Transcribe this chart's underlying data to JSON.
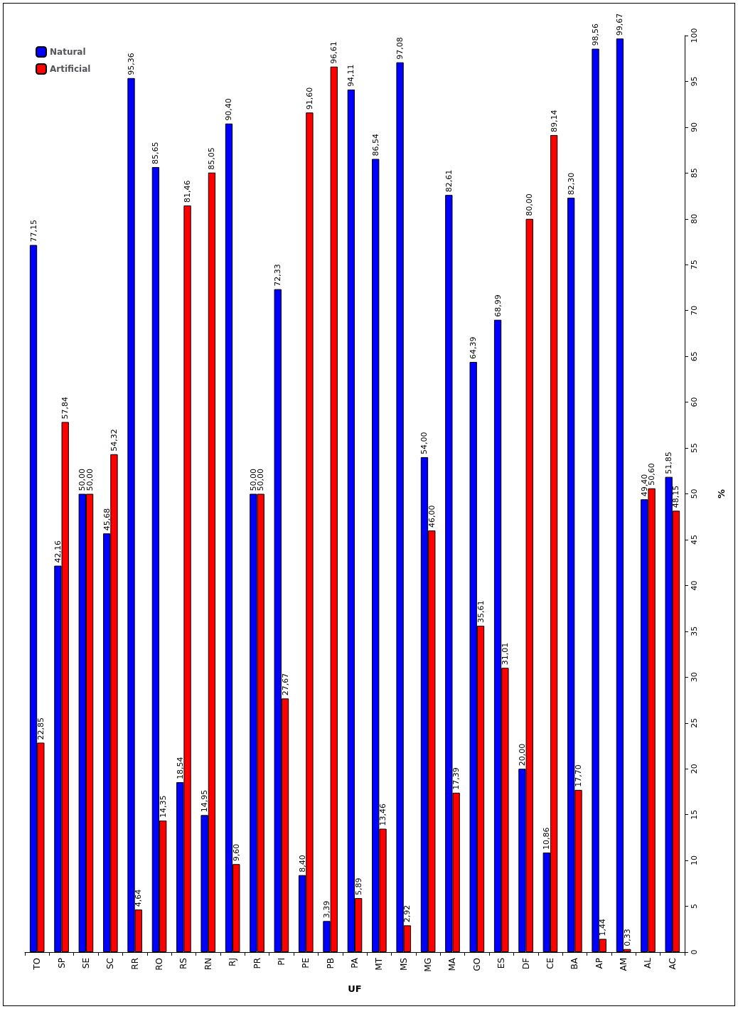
{
  "chart_data": {
    "type": "bar",
    "xlabel": "UF",
    "ylabel": "%",
    "categories": [
      "TO",
      "SP",
      "SE",
      "SC",
      "RR",
      "RO",
      "RS",
      "RN",
      "RJ",
      "PR",
      "PI",
      "PE",
      "PB",
      "PA",
      "MT",
      "MS",
      "MG",
      "MA",
      "GO",
      "ES",
      "DF",
      "CE",
      "BA",
      "AP",
      "AM",
      "AL",
      "AC"
    ],
    "series": [
      {
        "name": "Natural",
        "color": "#0000ff",
        "values": [
          77.15,
          42.16,
          50.0,
          45.68,
          95.36,
          85.65,
          18.54,
          14.95,
          90.4,
          50.0,
          72.33,
          8.4,
          3.39,
          94.11,
          86.54,
          97.08,
          54.0,
          82.61,
          64.39,
          68.99,
          20.0,
          10.86,
          82.3,
          98.56,
          99.67,
          49.4,
          51.85
        ],
        "value_labels": [
          "77,15",
          "42,16",
          "50,00",
          "45,68",
          "95,36",
          "85,65",
          "18,54",
          "14,95",
          "90,40",
          "50,00",
          "72,33",
          "8,40",
          "3,39",
          "94,11",
          "86,54",
          "97,08",
          "54,00",
          "82,61",
          "64,39",
          "68,99",
          "20,00",
          "10,86",
          "82,30",
          "98,56",
          "99,67",
          "49,40",
          "51,85"
        ]
      },
      {
        "name": "Artificial",
        "color": "#ff0000",
        "values": [
          22.85,
          57.84,
          50.0,
          54.32,
          4.64,
          14.35,
          81.46,
          85.05,
          9.6,
          50.0,
          27.67,
          91.6,
          96.61,
          5.89,
          13.46,
          2.92,
          46.0,
          17.39,
          35.61,
          31.01,
          80.0,
          89.14,
          17.7,
          1.44,
          0.33,
          50.6,
          48.15
        ],
        "value_labels": [
          "22,85",
          "57,84",
          "50,00",
          "54,32",
          "4,64",
          "14,35",
          "81,46",
          "85,05",
          "9,60",
          "50,00",
          "27,67",
          "91,60",
          "96,61",
          "5,89",
          "13,46",
          "2,92",
          "46,00",
          "17,39",
          "35,61",
          "31,01",
          "80,00",
          "89,14",
          "17,70",
          "1,44",
          "0,33",
          "50,60",
          "48,15"
        ]
      }
    ],
    "ylim": [
      0,
      100
    ],
    "yticks": [
      0,
      5,
      10,
      15,
      20,
      25,
      30,
      35,
      40,
      45,
      50,
      55,
      60,
      65,
      70,
      75,
      80,
      85,
      90,
      95,
      100
    ],
    "grid": false,
    "legend": "top left"
  }
}
